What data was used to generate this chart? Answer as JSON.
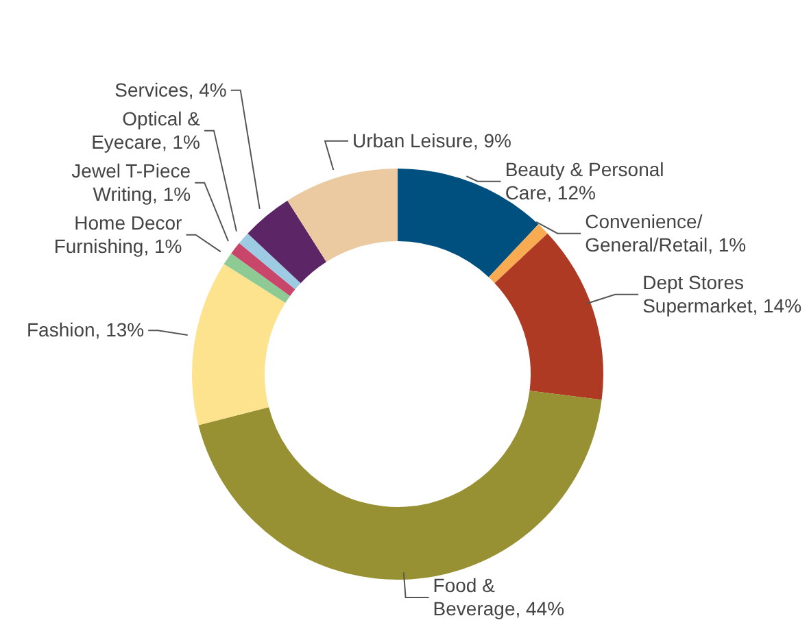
{
  "chart_data": {
    "type": "donut",
    "categories": [
      "Beauty & Personal Care",
      "Convenience/General/Retail",
      "Dept Stores Supermarket",
      "Food & Beverage",
      "Fashion",
      "Home Decor Furnishing",
      "Jewel T-Piece Writing",
      "Optical & Eyecare",
      "Services",
      "Urban Leisure"
    ],
    "values": [
      12,
      1,
      14,
      44,
      13,
      1,
      1,
      1,
      4,
      9
    ],
    "value_labels": [
      "12%",
      "1%",
      "14%",
      "44%",
      "13%",
      "1%",
      "1%",
      "1%",
      "4%",
      "9%"
    ],
    "colors": [
      "#00507f",
      "#f9ab52",
      "#ae3a24",
      "#989134",
      "#fde38e",
      "#8ecb94",
      "#c8466a",
      "#9dcbe3",
      "#5b2566",
      "#ebc9a1"
    ]
  }
}
